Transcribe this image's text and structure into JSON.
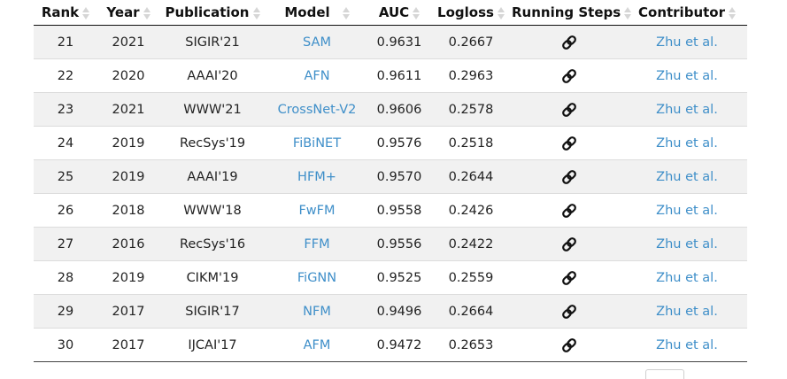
{
  "table": {
    "headers": {
      "rank": "Rank",
      "year": "Year",
      "publication": "Publication",
      "model": "Model",
      "auc": "AUC",
      "logloss": "Logloss",
      "running_steps": "Running Steps",
      "contributor": "Contributor"
    },
    "rows": [
      {
        "rank": "21",
        "year": "2021",
        "publication": "SIGIR'21",
        "model": "SAM",
        "auc": "0.9631",
        "logloss": "0.2667",
        "contributor": "Zhu et al."
      },
      {
        "rank": "22",
        "year": "2020",
        "publication": "AAAI'20",
        "model": "AFN",
        "auc": "0.9611",
        "logloss": "0.2963",
        "contributor": "Zhu et al."
      },
      {
        "rank": "23",
        "year": "2021",
        "publication": "WWW'21",
        "model": "CrossNet-V2",
        "auc": "0.9606",
        "logloss": "0.2578",
        "contributor": "Zhu et al."
      },
      {
        "rank": "24",
        "year": "2019",
        "publication": "RecSys'19",
        "model": "FiBiNET",
        "auc": "0.9576",
        "logloss": "0.2518",
        "contributor": "Zhu et al."
      },
      {
        "rank": "25",
        "year": "2019",
        "publication": "AAAI'19",
        "model": "HFM+",
        "auc": "0.9570",
        "logloss": "0.2644",
        "contributor": "Zhu et al."
      },
      {
        "rank": "26",
        "year": "2018",
        "publication": "WWW'18",
        "model": "FwFM",
        "auc": "0.9558",
        "logloss": "0.2426",
        "contributor": "Zhu et al."
      },
      {
        "rank": "27",
        "year": "2016",
        "publication": "RecSys'16",
        "model": "FFM",
        "auc": "0.9556",
        "logloss": "0.2422",
        "contributor": "Zhu et al."
      },
      {
        "rank": "28",
        "year": "2019",
        "publication": "CIKM'19",
        "model": "FiGNN",
        "auc": "0.9525",
        "logloss": "0.2559",
        "contributor": "Zhu et al."
      },
      {
        "rank": "29",
        "year": "2017",
        "publication": "SIGIR'17",
        "model": "NFM",
        "auc": "0.9496",
        "logloss": "0.2664",
        "contributor": "Zhu et al."
      },
      {
        "rank": "30",
        "year": "2017",
        "publication": "IJCAI'17",
        "model": "AFM",
        "auc": "0.9472",
        "logloss": "0.2653",
        "contributor": "Zhu et al."
      }
    ],
    "running_steps_icon": "link-icon"
  },
  "colors": {
    "link": "#3f8fc9",
    "stripe": "#f1f1f1",
    "sort_arrow": "#d6d6d6"
  }
}
